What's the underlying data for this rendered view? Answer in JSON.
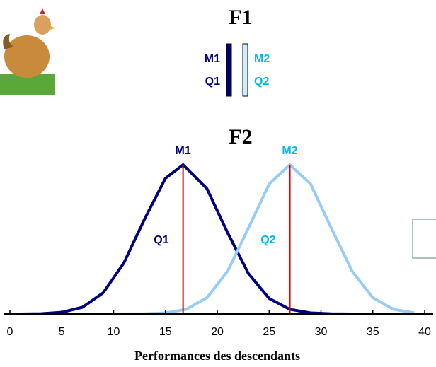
{
  "header": {
    "title": "F1",
    "chromosomes": [
      {
        "marker": "M1",
        "qtl": "Q1",
        "color": "#000080",
        "bar_color": "#000060"
      },
      {
        "marker": "M2",
        "qtl": "Q2",
        "color": "#00b8f0",
        "bar_color": "#d0f0f0"
      }
    ]
  },
  "chart_data": {
    "type": "line",
    "title": "F2",
    "xlabel": "Performances des descendants",
    "xlim": [
      0,
      40
    ],
    "xticks": [
      0,
      5,
      10,
      15,
      20,
      25,
      30,
      35,
      40
    ],
    "ylim": [
      0,
      1
    ],
    "mean_line_color": "#e00000",
    "series": [
      {
        "name": "M1",
        "color": "#000080",
        "label_color": "#000080",
        "qtl_label": "Q1",
        "mean": 16.7,
        "x": [
          1,
          3,
          5,
          7,
          9,
          11,
          13,
          15,
          16.7,
          19,
          21,
          23,
          25,
          27,
          29,
          31,
          33
        ],
        "values": [
          0,
          0.002,
          0.011,
          0.045,
          0.142,
          0.343,
          0.638,
          0.909,
          1,
          0.84,
          0.544,
          0.271,
          0.104,
          0.031,
          0.007,
          0.001,
          0
        ]
      },
      {
        "name": "M2",
        "color": "#99ccf5",
        "label_color": "#00b8f0",
        "qtl_label": "Q2",
        "mean": 27,
        "x": [
          1,
          5,
          9,
          13,
          15,
          17,
          19,
          21,
          23,
          25,
          27,
          29,
          31,
          33,
          35,
          37,
          39
        ],
        "values": [
          0,
          0,
          0,
          0.001,
          0.007,
          0.031,
          0.109,
          0.287,
          0.575,
          0.871,
          1,
          0.871,
          0.575,
          0.287,
          0.109,
          0.031,
          0.007
        ]
      }
    ]
  }
}
